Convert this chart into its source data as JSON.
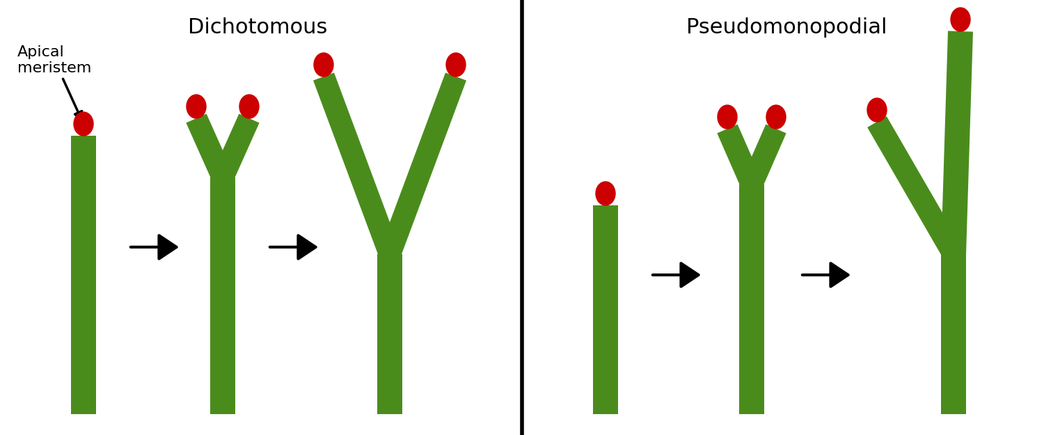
{
  "background_color": "#ffffff",
  "green_color": "#4a8c1c",
  "red_color": "#cc0000",
  "title_dichotomous": "Dichotomous",
  "title_pseudomonopodial": "Pseudomonopodial",
  "label_apical": "Apical\nmeristem",
  "title_fontsize": 22,
  "label_fontsize": 16,
  "fig_w": 15.0,
  "fig_h": 6.25,
  "dpi": 100
}
